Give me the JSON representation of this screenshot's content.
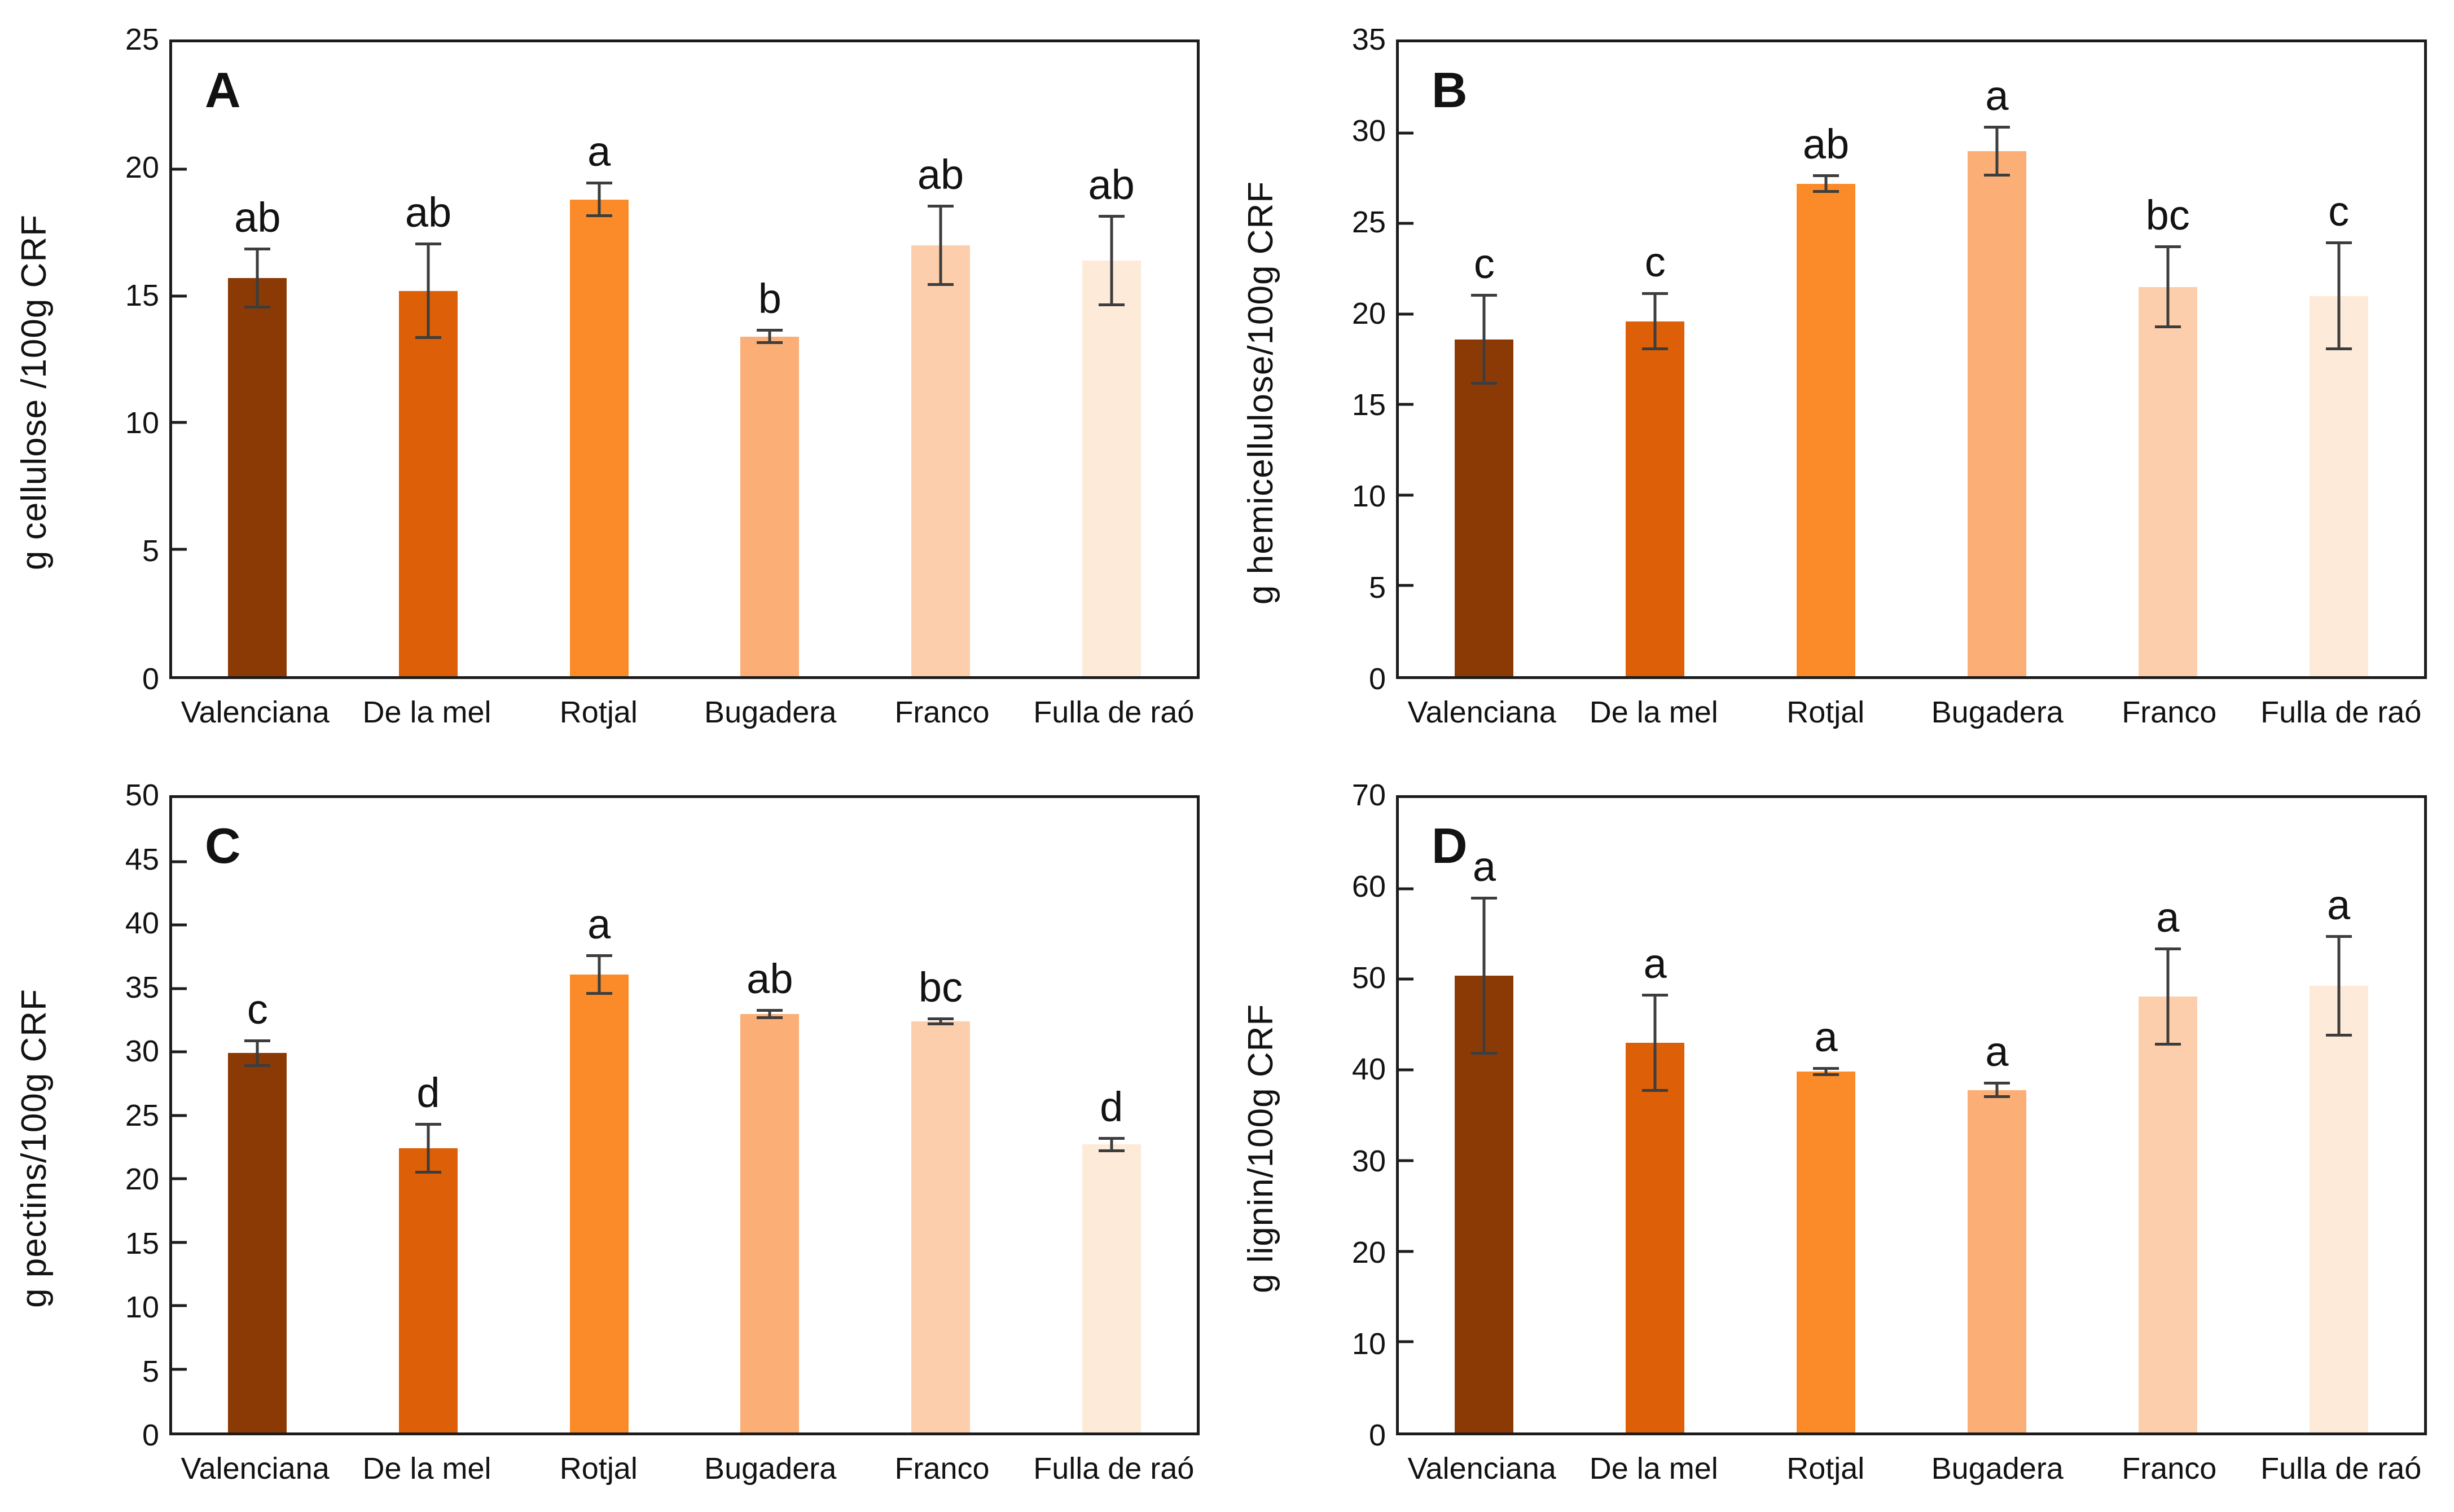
{
  "figure": {
    "background": "#ffffff",
    "axis_color": "#1c1c1c",
    "error_bar_color": "#3d3d3d",
    "text_color": "#121212",
    "bar_colors": [
      "#8b3a06",
      "#dd5f07",
      "#fb8b28",
      "#fbae76",
      "#fdceab",
      "#fdead9"
    ]
  },
  "chart_data": [
    {
      "panel_label": "A",
      "type": "bar",
      "ylabel": "g cellulose /100g CRF",
      "ymax": 25,
      "ystep": 5,
      "grid": false,
      "categories": [
        "Valenciana",
        "De la mel",
        "Rotjal",
        "Bugadera",
        "Franco",
        "Fulla de raó"
      ],
      "values": [
        15.7,
        15.2,
        18.8,
        13.4,
        17.0,
        16.4
      ],
      "errors": [
        1.2,
        1.9,
        0.7,
        0.3,
        1.6,
        1.8
      ],
      "sig_letters": [
        "ab",
        "ab",
        "a",
        "b",
        "ab",
        "ab"
      ]
    },
    {
      "panel_label": "B",
      "type": "bar",
      "ylabel": "g hemicellulose/100g CRF",
      "ymax": 35,
      "ystep": 5,
      "grid": false,
      "categories": [
        "Valenciana",
        "De la mel",
        "Rotjal",
        "Bugadera",
        "Franco",
        "Fulla de raó"
      ],
      "values": [
        18.6,
        19.6,
        27.2,
        29.0,
        21.5,
        21.0
      ],
      "errors": [
        2.5,
        1.6,
        0.5,
        1.4,
        2.3,
        3.0
      ],
      "sig_letters": [
        "c",
        "c",
        "ab",
        "a",
        "bc",
        "c"
      ]
    },
    {
      "panel_label": "C",
      "type": "bar",
      "ylabel": "g pectins/100g CRF",
      "ymax": 50,
      "ystep": 5,
      "grid": false,
      "categories": [
        "Valenciana",
        "De la mel",
        "Rotjal",
        "Bugadera",
        "Franco",
        "Fulla de raó"
      ],
      "values": [
        29.9,
        22.4,
        36.1,
        33.0,
        32.4,
        22.7
      ],
      "errors": [
        1.1,
        2.0,
        1.6,
        0.4,
        0.3,
        0.6
      ],
      "sig_letters": [
        "c",
        "d",
        "a",
        "ab",
        "bc",
        "d"
      ]
    },
    {
      "panel_label": "D",
      "type": "bar",
      "ylabel": "g lignin/100g CRF",
      "ymax": 70,
      "ystep": 10,
      "grid": false,
      "categories": [
        "Valenciana",
        "De la mel",
        "Rotjal",
        "Bugadera",
        "Franco",
        "Fulla de raó"
      ],
      "values": [
        50.4,
        43.0,
        39.8,
        37.8,
        48.1,
        49.3
      ],
      "errors": [
        8.7,
        5.4,
        0.5,
        0.9,
        5.4,
        5.6
      ],
      "sig_letters": [
        "a",
        "a",
        "a",
        "a",
        "a",
        "a"
      ]
    }
  ]
}
